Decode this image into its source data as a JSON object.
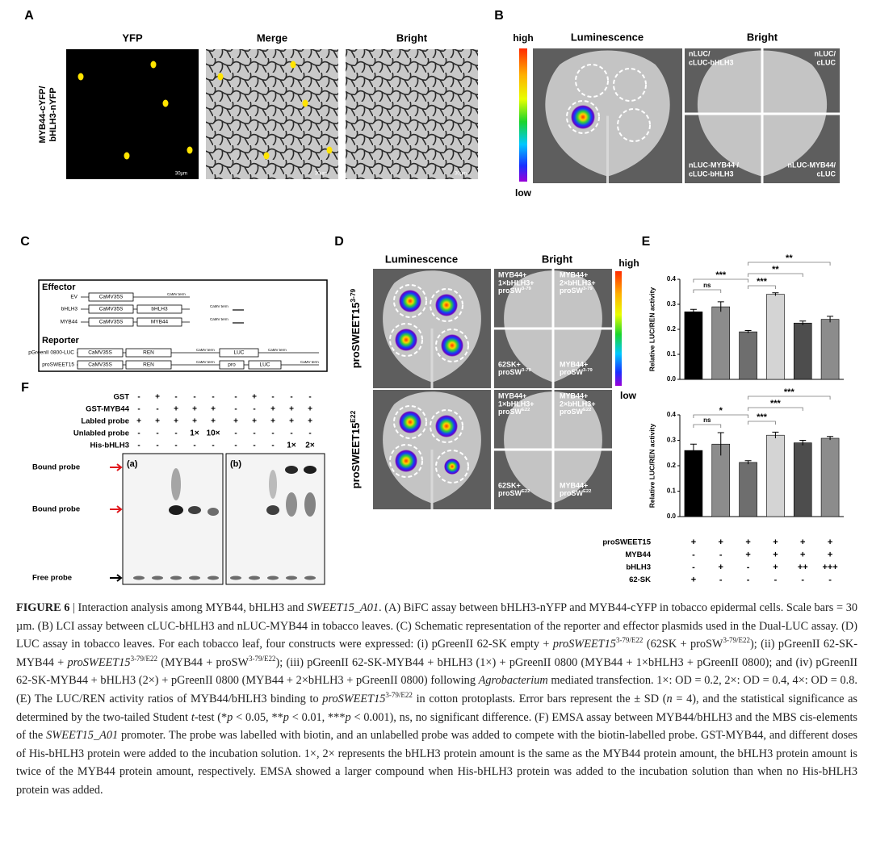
{
  "panel_labels": [
    "A",
    "B",
    "C",
    "D",
    "E",
    "F"
  ],
  "panel_a": {
    "columns": [
      "YFP",
      "Merge",
      "Bright"
    ],
    "row_label": [
      "MYB44-cYFP/",
      "bHLH3-nYFP"
    ],
    "scale_bar": "30μm"
  },
  "panel_b": {
    "titles": [
      "Luminescence",
      "Bright"
    ],
    "colorbar": {
      "high": "high",
      "low": "low"
    },
    "quadrants": [
      [
        "nLUC/",
        "cLUC-bHLH3"
      ],
      [
        "nLUC/",
        "cLUC"
      ],
      [
        "nLUC-MYB44 /",
        "cLUC-bHLH3"
      ],
      [
        "nLUC-MYB44/",
        "cLUC"
      ]
    ]
  },
  "panel_c": {
    "effector_title": "Effector",
    "reporter_title": "Reporter",
    "effectors": [
      {
        "name": "EV",
        "parts": [
          "CaMV35S"
        ],
        "term": "CaMV term"
      },
      {
        "name": "bHLH3",
        "parts": [
          "CaMV35S",
          "bHLH3"
        ],
        "term": "CaMV term"
      },
      {
        "name": "MYB44",
        "parts": [
          "CaMV35S",
          "MYB44"
        ],
        "term": "CaMV term"
      }
    ],
    "reporters": [
      {
        "name": "pGreenII 0800-LUC",
        "parts": [
          "CaMV35S",
          "REN"
        ],
        "term": "CaMV term",
        "parts2": [
          "LUC"
        ],
        "term2": "CaMV term"
      },
      {
        "name": "proSWEET15",
        "parts": [
          "CaMV35S",
          "REN"
        ],
        "term": "CaMV term",
        "parts2": [
          "pro",
          "LUC"
        ],
        "term2": "CaMV term"
      }
    ]
  },
  "panel_d": {
    "titles": [
      "Luminescence",
      "Bright"
    ],
    "colorbar": {
      "high": "high",
      "low": "low"
    },
    "rows": [
      {
        "label": {
          "base": "proSWEET15",
          "sup": "3-79"
        },
        "quadrants": [
          [
            "MYB44+",
            "1×bHLH3+",
            {
              "base": "proSW",
              "sup": "3-79"
            }
          ],
          [
            "MYB44+",
            "2×bHLH3+",
            {
              "base": "proSW",
              "sup": "3-79"
            }
          ],
          [
            "62SK+",
            {
              "base": "proSW",
              "sup": "3-79"
            }
          ],
          [
            "MYB44+",
            {
              "base": "proSW",
              "sup": "3-79"
            }
          ]
        ]
      },
      {
        "label": {
          "base": "proSWEET15",
          "sup": "E22"
        },
        "quadrants": [
          [
            "MYB44+",
            "1×bHLH3+",
            {
              "base": "proSW",
              "sup": "E22"
            }
          ],
          [
            "MYB44+",
            "2×bHLH3+",
            {
              "base": "proSW",
              "sup": "E22"
            }
          ],
          [
            "62SK+",
            {
              "base": "proSW",
              "sup": "E22"
            }
          ],
          [
            "MYB44+",
            {
              "base": "proSW",
              "sup": "E22"
            }
          ]
        ]
      }
    ]
  },
  "chart_data": [
    {
      "type": "bar",
      "ylabel": "Relative LUC/REN activity",
      "values": [
        0.27,
        0.29,
        0.19,
        0.34,
        0.225,
        0.24
      ],
      "errors": [
        0.01,
        0.02,
        0.005,
        0.006,
        0.008,
        0.012
      ],
      "colors": [
        "#000000",
        "#8c8c8c",
        "#6e6e6e",
        "#d4d4d4",
        "#4d4d4d",
        "#8c8c8c"
      ],
      "ylim": [
        0,
        0.4
      ],
      "yticks": [
        {
          "value": 0,
          "label": "0.0"
        },
        0.1,
        0.2,
        0.3,
        0.4
      ],
      "significance": [
        "ns",
        "***",
        "***",
        "**",
        "**"
      ]
    },
    {
      "type": "bar",
      "ylabel": "Relative LUC/REN activity",
      "values": [
        0.26,
        0.285,
        0.213,
        0.32,
        0.29,
        0.308
      ],
      "errors": [
        0.025,
        0.045,
        0.007,
        0.012,
        0.01,
        0.007
      ],
      "colors": [
        "#000000",
        "#8c8c8c",
        "#6e6e6e",
        "#d4d4d4",
        "#4d4d4d",
        "#8c8c8c"
      ],
      "ylim": [
        0,
        0.4
      ],
      "yticks": [
        {
          "value": 0,
          "label": "0.0"
        },
        0.1,
        0.2,
        0.3,
        0.4
      ],
      "significance": [
        "ns",
        "*",
        "***",
        "***",
        "***"
      ]
    }
  ],
  "panel_e_table": {
    "rows": [
      {
        "label": "proSWEET15",
        "cells": [
          "+",
          "+",
          "+",
          "+",
          "+",
          "+"
        ]
      },
      {
        "label": "MYB44",
        "cells": [
          "-",
          "-",
          "+",
          "+",
          "+",
          "+"
        ]
      },
      {
        "label": "bHLH3",
        "cells": [
          "-",
          "+",
          "-",
          "+",
          "++",
          "+++"
        ]
      },
      {
        "label": "62-SK",
        "cells": [
          "+",
          "-",
          "-",
          "-",
          "-",
          "-"
        ]
      }
    ]
  },
  "panel_f": {
    "rows": [
      {
        "label": "GST",
        "cells": [
          "-",
          "+",
          "-",
          "-",
          "-",
          "-",
          "+",
          "-",
          "-",
          "-"
        ]
      },
      {
        "label": "GST-MYB44",
        "cells": [
          "-",
          "-",
          "+",
          "+",
          "+",
          "-",
          "-",
          "+",
          "+",
          "+"
        ]
      },
      {
        "label": "Labled probe",
        "cells": [
          "+",
          "+",
          "+",
          "+",
          "+",
          "+",
          "+",
          "+",
          "+",
          "+"
        ]
      },
      {
        "label": "Unlabled probe",
        "cells": [
          "-",
          "-",
          "-",
          "1×",
          "10×",
          "-",
          "-",
          "-",
          "-",
          "-"
        ]
      },
      {
        "label": "His-bHLH3",
        "cells": [
          "-",
          "-",
          "-",
          "-",
          "-",
          "-",
          "-",
          "-",
          "1×",
          "2×"
        ]
      }
    ],
    "gel_labels": [
      "(a)",
      "(b)"
    ],
    "markers": [
      "Bound probe",
      "Bound probe",
      "Free probe"
    ]
  },
  "caption": [
    {
      "b": "FIGURE 6"
    },
    "  |  Interaction analysis among MYB44, bHLH3 and ",
    {
      "i": "SWEET15_A01"
    },
    ". (A) BiFC assay between bHLH3-nYFP and MYB44-cYFP in tobacco epidermal cells. Scale bars = 30 µm. (B) LCI assay between cLUC-bHLH3 and nLUC-MYB44 in tobacco leaves. (C) Schematic representation of the reporter and effector plasmids used in the Dual-LUC assay. (D) LUC assay in tobacco leaves. For each tobacco leaf, four constructs were expressed: (i) pGreenII 62-SK empty + ",
    {
      "i": "proSWEET15"
    },
    {
      "sup": "3-79/E22"
    },
    " (62SK + proSW",
    {
      "sup": "3-79/E22"
    },
    "); (ii) pGreenII 62-SK-MYB44 + ",
    {
      "i": "proSWEET15"
    },
    {
      "sup": "3-79/E22"
    },
    " (MYB44 + proSW",
    {
      "sup": "3-79/E22"
    },
    "); (iii) pGreenII 62-SK-MYB44 + bHLH3 (1×) + pGreenII 0800 (MYB44 + 1×bHLH3 + pGreenII 0800); and (iv) pGreenII 62-SK-MYB44 + bHLH3 (2×) + pGreenII 0800 (MYB44 + 2×bHLH3 + pGreenII 0800) following ",
    {
      "i": "Agrobacterium"
    },
    " mediated transfection. 1×: OD = 0.2, 2×: OD = 0.4, 4×: OD = 0.8. (E) The LUC/REN activity ratios of MYB44/bHLH3 binding to ",
    {
      "i": "proSWEET15"
    },
    {
      "sup": "3-79/E22"
    },
    " in cotton protoplasts. Error bars represent the ± SD (",
    {
      "i": "n"
    },
    " = 4), and the statistical significance as determined by the two-tailed Student ",
    {
      "i": "t"
    },
    "-test (*",
    {
      "i": "p"
    },
    " < 0.05, **",
    {
      "i": "p"
    },
    " < 0.01, ***",
    {
      "i": "p"
    },
    " < 0.001), ns, no significant difference. (F) EMSA assay between MYB44/bHLH3 and the MBS cis-elements of the ",
    {
      "i": "SWEET15_A01"
    },
    " promoter. The probe was labelled with biotin, and an unlabelled probe was added to compete with the biotin-labelled probe. GST-MYB44, and different doses of His-bHLH3 protein were added to the incubation solution. 1×, 2× represents the bHLH3 protein amount is the same as the MYB44 protein amount, the bHLH3 protein amount is twice of the MYB44 protein amount, respectively. EMSA showed a larger compound when His-bHLH3 protein was added to the incubation solution than when no His-bHLH3 protein was added."
  ]
}
